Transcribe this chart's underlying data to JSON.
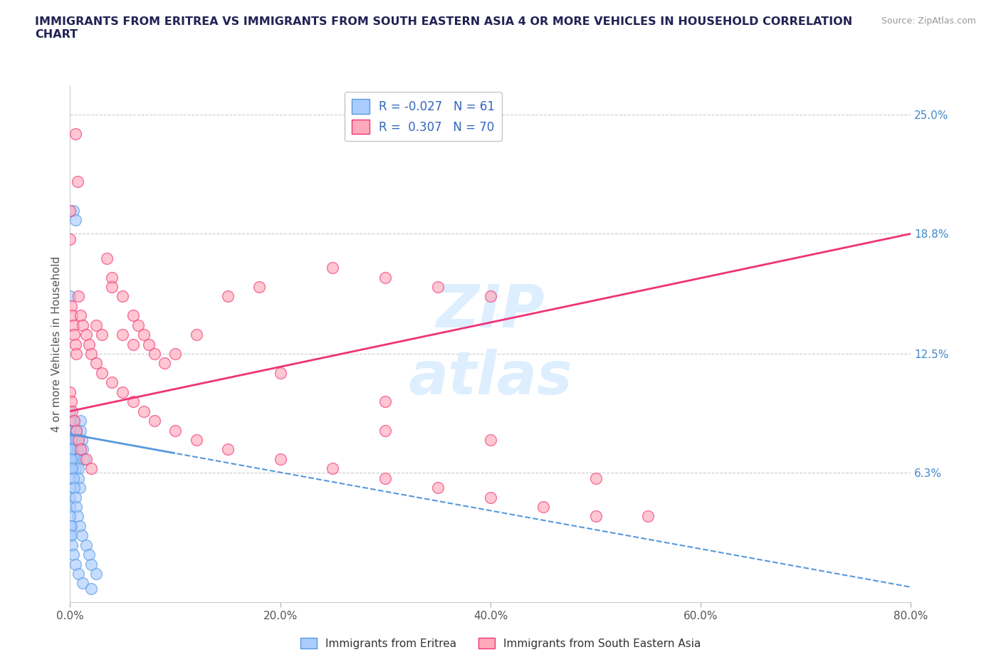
{
  "title": "IMMIGRANTS FROM ERITREA VS IMMIGRANTS FROM SOUTH EASTERN ASIA 4 OR MORE VEHICLES IN HOUSEHOLD CORRELATION\nCHART",
  "source": "Source: ZipAtlas.com",
  "ylabel": "4 or more Vehicles in Household",
  "xmin": 0.0,
  "xmax": 0.8,
  "ymin": -0.005,
  "ymax": 0.265,
  "xtick_labels": [
    "0.0%",
    "20.0%",
    "40.0%",
    "60.0%",
    "80.0%"
  ],
  "xtick_vals": [
    0.0,
    0.2,
    0.4,
    0.6,
    0.8
  ],
  "ytick_labels_right": [
    "25.0%",
    "18.8%",
    "12.5%",
    "6.3%"
  ],
  "ytick_vals_right": [
    0.25,
    0.188,
    0.125,
    0.063
  ],
  "legend_R1": "-0.027",
  "legend_N1": "61",
  "legend_R2": "0.307",
  "legend_N2": "70",
  "color_eritrea": "#aaccff",
  "color_sea": "#ffaabb",
  "trendline_eritrea_color": "#5599dd",
  "trendline_sea_color": "#ee3377",
  "watermark_color": "#ddeeff",
  "eritrea_x": [
    0.003,
    0.005,
    0.0,
    0.0,
    0.0,
    0.0,
    0.001,
    0.001,
    0.001,
    0.002,
    0.002,
    0.002,
    0.003,
    0.003,
    0.004,
    0.004,
    0.005,
    0.005,
    0.006,
    0.006,
    0.007,
    0.007,
    0.008,
    0.008,
    0.009,
    0.01,
    0.01,
    0.011,
    0.012,
    0.013,
    0.0,
    0.0,
    0.0,
    0.0,
    0.0,
    0.0,
    0.001,
    0.001,
    0.002,
    0.003,
    0.004,
    0.005,
    0.006,
    0.007,
    0.009,
    0.011,
    0.015,
    0.018,
    0.02,
    0.025,
    0.0,
    0.0,
    0.0,
    0.001,
    0.001,
    0.002,
    0.003,
    0.005,
    0.008,
    0.012,
    0.02
  ],
  "eritrea_y": [
    0.2,
    0.195,
    0.155,
    0.095,
    0.085,
    0.08,
    0.09,
    0.085,
    0.08,
    0.075,
    0.07,
    0.065,
    0.09,
    0.085,
    0.08,
    0.075,
    0.07,
    0.065,
    0.085,
    0.08,
    0.075,
    0.07,
    0.065,
    0.06,
    0.055,
    0.09,
    0.085,
    0.08,
    0.075,
    0.07,
    0.07,
    0.065,
    0.06,
    0.055,
    0.05,
    0.045,
    0.075,
    0.07,
    0.065,
    0.06,
    0.055,
    0.05,
    0.045,
    0.04,
    0.035,
    0.03,
    0.025,
    0.02,
    0.015,
    0.01,
    0.04,
    0.035,
    0.03,
    0.035,
    0.03,
    0.025,
    0.02,
    0.015,
    0.01,
    0.005,
    0.002
  ],
  "sea_x": [
    0.005,
    0.007,
    0.0,
    0.0,
    0.001,
    0.002,
    0.003,
    0.004,
    0.005,
    0.006,
    0.008,
    0.01,
    0.012,
    0.015,
    0.018,
    0.02,
    0.025,
    0.03,
    0.035,
    0.04,
    0.04,
    0.05,
    0.05,
    0.06,
    0.06,
    0.065,
    0.07,
    0.075,
    0.08,
    0.09,
    0.1,
    0.12,
    0.15,
    0.18,
    0.2,
    0.25,
    0.3,
    0.35,
    0.4,
    0.55,
    0.0,
    0.001,
    0.002,
    0.004,
    0.006,
    0.008,
    0.01,
    0.015,
    0.02,
    0.025,
    0.03,
    0.04,
    0.05,
    0.06,
    0.07,
    0.08,
    0.1,
    0.12,
    0.15,
    0.2,
    0.25,
    0.3,
    0.3,
    0.35,
    0.4,
    0.45,
    0.5,
    0.3,
    0.4,
    0.5
  ],
  "sea_y": [
    0.24,
    0.215,
    0.2,
    0.185,
    0.15,
    0.145,
    0.14,
    0.135,
    0.13,
    0.125,
    0.155,
    0.145,
    0.14,
    0.135,
    0.13,
    0.125,
    0.14,
    0.135,
    0.175,
    0.165,
    0.16,
    0.155,
    0.135,
    0.145,
    0.13,
    0.14,
    0.135,
    0.13,
    0.125,
    0.12,
    0.125,
    0.135,
    0.155,
    0.16,
    0.115,
    0.17,
    0.165,
    0.16,
    0.155,
    0.04,
    0.105,
    0.1,
    0.095,
    0.09,
    0.085,
    0.08,
    0.075,
    0.07,
    0.065,
    0.12,
    0.115,
    0.11,
    0.105,
    0.1,
    0.095,
    0.09,
    0.085,
    0.08,
    0.075,
    0.07,
    0.065,
    0.06,
    0.085,
    0.055,
    0.05,
    0.045,
    0.04,
    0.1,
    0.08,
    0.06
  ]
}
